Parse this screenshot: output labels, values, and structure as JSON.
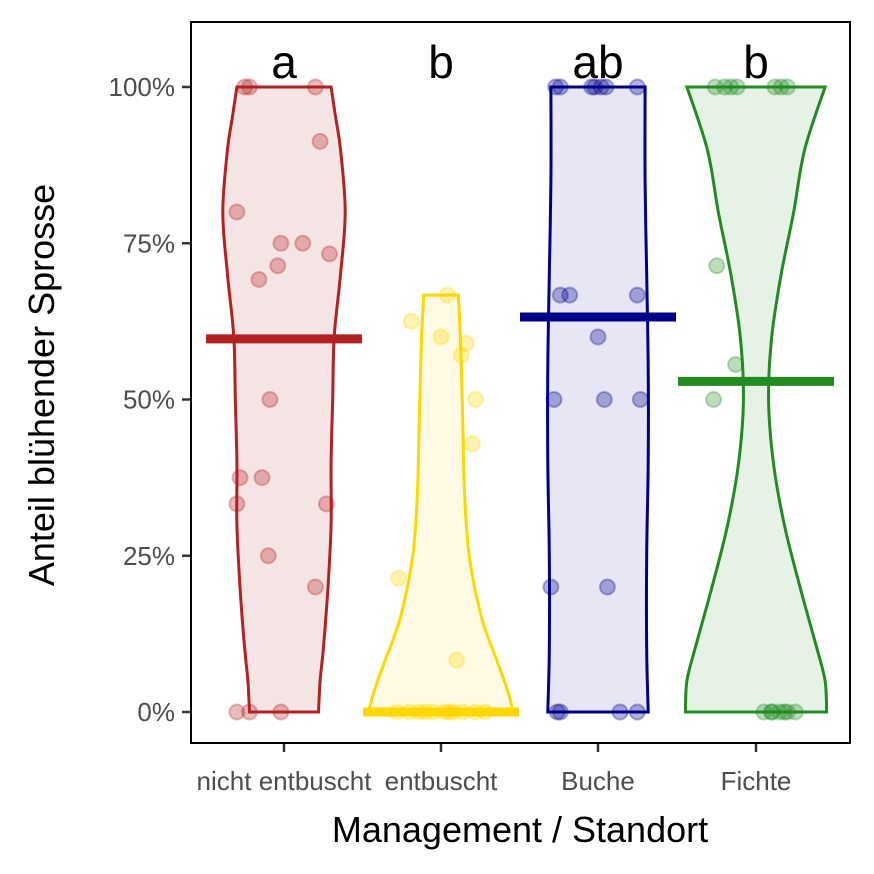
{
  "chart_data": {
    "type": "violin",
    "xlabel": "Management / Standort",
    "ylabel": "Anteil blühender Sprosse",
    "ylim": [
      -0.05,
      1.1
    ],
    "y_ticks": [
      {
        "value": 0,
        "label": "0%"
      },
      {
        "value": 0.25,
        "label": "25%"
      },
      {
        "value": 0.5,
        "label": "50%"
      },
      {
        "value": 0.75,
        "label": "75%"
      },
      {
        "value": 1,
        "label": "100%"
      }
    ],
    "grid": false,
    "legend": "none",
    "categories": [
      "nicht entbuscht",
      "entbuscht",
      "Buche",
      "Fichte"
    ],
    "groups": [
      {
        "category": "nicht entbuscht",
        "letter": "a",
        "color": "#B22222",
        "fill": "#F5E4E4",
        "mean": 0.597,
        "points": [
          [
            -0.25,
            1.0
          ],
          [
            -0.22,
            1.0
          ],
          [
            0.2,
            1.0
          ],
          [
            0.23,
            0.913
          ],
          [
            -0.3,
            0.8
          ],
          [
            -0.02,
            0.75
          ],
          [
            0.12,
            0.75
          ],
          [
            -0.04,
            0.714
          ],
          [
            0.29,
            0.733
          ],
          [
            -0.16,
            0.692
          ],
          [
            -0.09,
            0.5
          ],
          [
            -0.28,
            0.375
          ],
          [
            -0.14,
            0.375
          ],
          [
            -0.3,
            0.333
          ],
          [
            0.27,
            0.333
          ],
          [
            -0.1,
            0.25
          ],
          [
            0.2,
            0.2
          ],
          [
            -0.3,
            0.0
          ],
          [
            -0.22,
            0.0
          ],
          [
            -0.02,
            0.0
          ]
        ],
        "density": [
          [
            0.0,
            0.22
          ],
          [
            0.05,
            0.23
          ],
          [
            0.1,
            0.25
          ],
          [
            0.2,
            0.28
          ],
          [
            0.3,
            0.3
          ],
          [
            0.4,
            0.3
          ],
          [
            0.5,
            0.31
          ],
          [
            0.6,
            0.32
          ],
          [
            0.7,
            0.36
          ],
          [
            0.8,
            0.39
          ],
          [
            0.9,
            0.36
          ],
          [
            0.95,
            0.33
          ],
          [
            1.0,
            0.3
          ]
        ]
      },
      {
        "category": "entbuscht",
        "letter": "b",
        "color": "#FFD700",
        "fill": "#FFFAE3",
        "mean": 0.0,
        "points": [
          [
            -0.28,
            0.0
          ],
          [
            -0.2,
            0.0
          ],
          [
            -0.1,
            0.0
          ],
          [
            -0.05,
            0.0
          ],
          [
            0.02,
            0.0
          ],
          [
            0.08,
            0.0
          ],
          [
            0.14,
            0.0
          ],
          [
            0.22,
            0.0
          ],
          [
            0.28,
            0.0
          ],
          [
            -0.14,
            0.0
          ],
          [
            0.05,
            0.0
          ],
          [
            -0.27,
            0.214
          ],
          [
            0.1,
            0.083
          ],
          [
            0.2,
            0.429
          ],
          [
            0.22,
            0.5
          ],
          [
            0.13,
            0.571
          ],
          [
            0.16,
            0.59
          ],
          [
            0.0,
            0.6
          ],
          [
            -0.19,
            0.625
          ],
          [
            0.04,
            0.667
          ]
        ],
        "density": [
          [
            0.0,
            0.46
          ],
          [
            0.03,
            0.43
          ],
          [
            0.08,
            0.36
          ],
          [
            0.15,
            0.26
          ],
          [
            0.25,
            0.18
          ],
          [
            0.35,
            0.15
          ],
          [
            0.45,
            0.14
          ],
          [
            0.55,
            0.13
          ],
          [
            0.62,
            0.12
          ],
          [
            0.667,
            0.11
          ]
        ]
      },
      {
        "category": "Buche",
        "letter": "ab",
        "color": "#00008B",
        "fill": "#E6E6F5",
        "mean": 0.632,
        "points": [
          [
            -0.27,
            1.0
          ],
          [
            -0.24,
            1.0
          ],
          [
            -0.02,
            1.0
          ],
          [
            0.02,
            1.0
          ],
          [
            -0.04,
            1.0
          ],
          [
            0.05,
            1.0
          ],
          [
            0.25,
            1.0
          ],
          [
            -0.24,
            0.667
          ],
          [
            -0.18,
            0.667
          ],
          [
            0.25,
            0.667
          ],
          [
            0.0,
            0.6
          ],
          [
            -0.28,
            0.5
          ],
          [
            0.04,
            0.5
          ],
          [
            0.27,
            0.5
          ],
          [
            -0.3,
            0.2
          ],
          [
            0.06,
            0.2
          ],
          [
            -0.26,
            0.0
          ],
          [
            -0.24,
            0.0
          ],
          [
            0.14,
            0.0
          ],
          [
            0.25,
            0.0
          ]
        ],
        "density": [
          [
            0.0,
            0.32
          ],
          [
            0.1,
            0.31
          ],
          [
            0.25,
            0.31
          ],
          [
            0.4,
            0.32
          ],
          [
            0.55,
            0.32
          ],
          [
            0.7,
            0.31
          ],
          [
            0.85,
            0.3
          ],
          [
            1.0,
            0.3
          ]
        ]
      },
      {
        "category": "Fichte",
        "letter": "b",
        "color": "#228B22",
        "fill": "#E5F2E5",
        "mean": 0.529,
        "points": [
          [
            -0.26,
            1.0
          ],
          [
            -0.2,
            1.0
          ],
          [
            -0.16,
            1.0
          ],
          [
            -0.12,
            1.0
          ],
          [
            0.12,
            1.0
          ],
          [
            0.16,
            1.0
          ],
          [
            0.2,
            1.0
          ],
          [
            -0.25,
            0.714
          ],
          [
            -0.13,
            0.556
          ],
          [
            -0.27,
            0.5
          ],
          [
            0.05,
            0.0
          ],
          [
            0.1,
            0.0
          ],
          [
            0.15,
            0.0
          ],
          [
            0.2,
            0.0
          ],
          [
            0.25,
            0.0
          ],
          [
            0.1,
            0.0
          ],
          [
            0.18,
            0.0
          ]
        ],
        "density": [
          [
            0.0,
            0.45
          ],
          [
            0.05,
            0.44
          ],
          [
            0.1,
            0.39
          ],
          [
            0.2,
            0.28
          ],
          [
            0.3,
            0.18
          ],
          [
            0.4,
            0.11
          ],
          [
            0.5,
            0.08
          ],
          [
            0.6,
            0.1
          ],
          [
            0.7,
            0.16
          ],
          [
            0.8,
            0.24
          ],
          [
            0.9,
            0.31
          ],
          [
            1.0,
            0.44
          ]
        ]
      }
    ]
  }
}
